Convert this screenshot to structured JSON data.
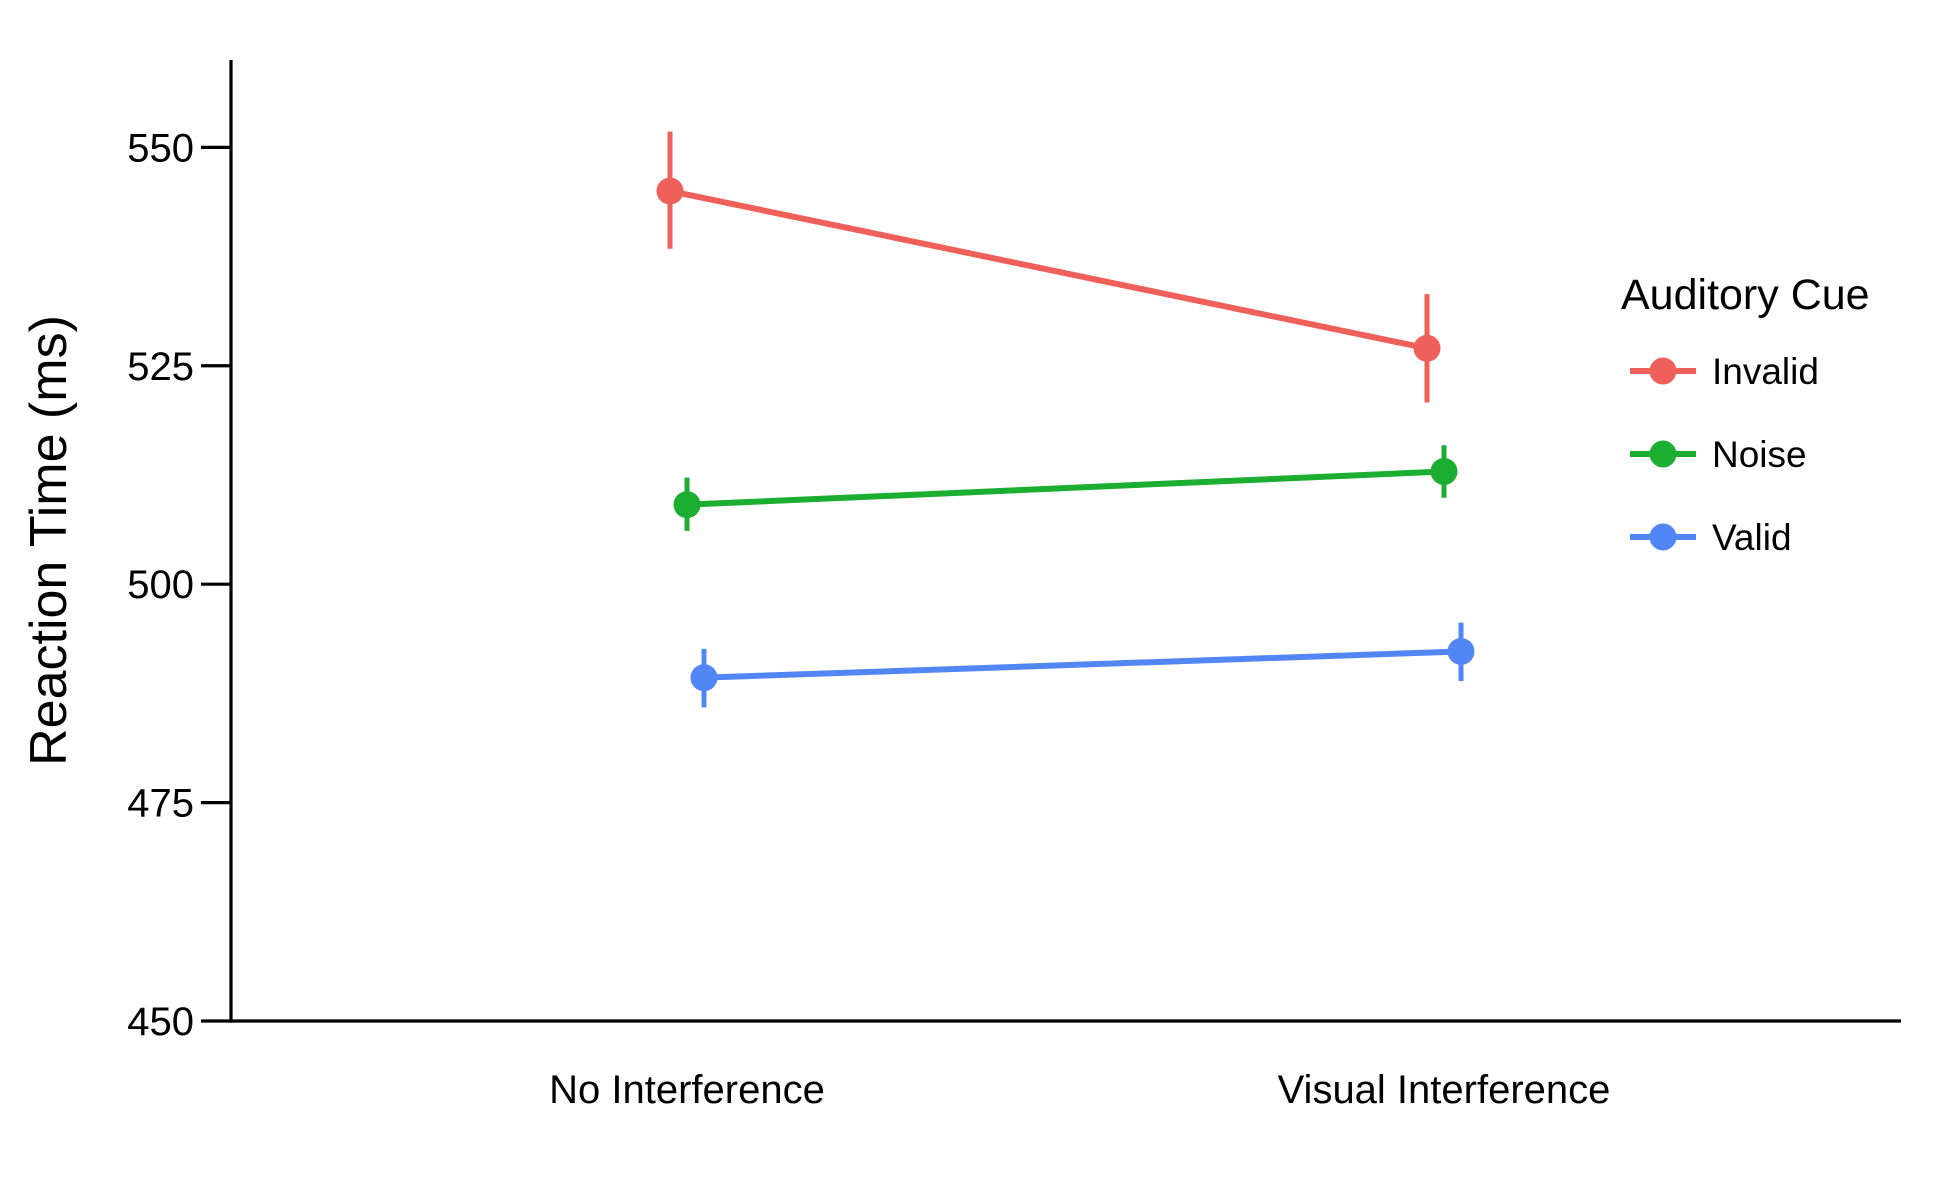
{
  "chart_data": {
    "type": "line",
    "title": "",
    "xlabel": "",
    "ylabel": "Reaction Time (ms)",
    "ylim": [
      450,
      560
    ],
    "yticks": [
      450,
      475,
      500,
      525,
      550
    ],
    "categories": [
      "No Interference",
      "Visual Interference"
    ],
    "grid": false,
    "legend": {
      "title": "Auditory Cue",
      "position": "right"
    },
    "series": [
      {
        "name": "Invalid",
        "color": "#F0605A",
        "values": [
          545,
          527
        ],
        "error_low": [
          538.4,
          520.8
        ],
        "error_high": [
          551.8,
          533.2
        ]
      },
      {
        "name": "Noise",
        "color": "#1BAE30",
        "values": [
          509.1,
          512.9
        ],
        "error_low": [
          506.1,
          509.9
        ],
        "error_high": [
          512.2,
          515.9
        ]
      },
      {
        "name": "Valid",
        "color": "#5386F5",
        "values": [
          489.3,
          492.3
        ],
        "error_low": [
          485.9,
          488.9
        ],
        "error_high": [
          492.6,
          495.6
        ]
      }
    ]
  }
}
